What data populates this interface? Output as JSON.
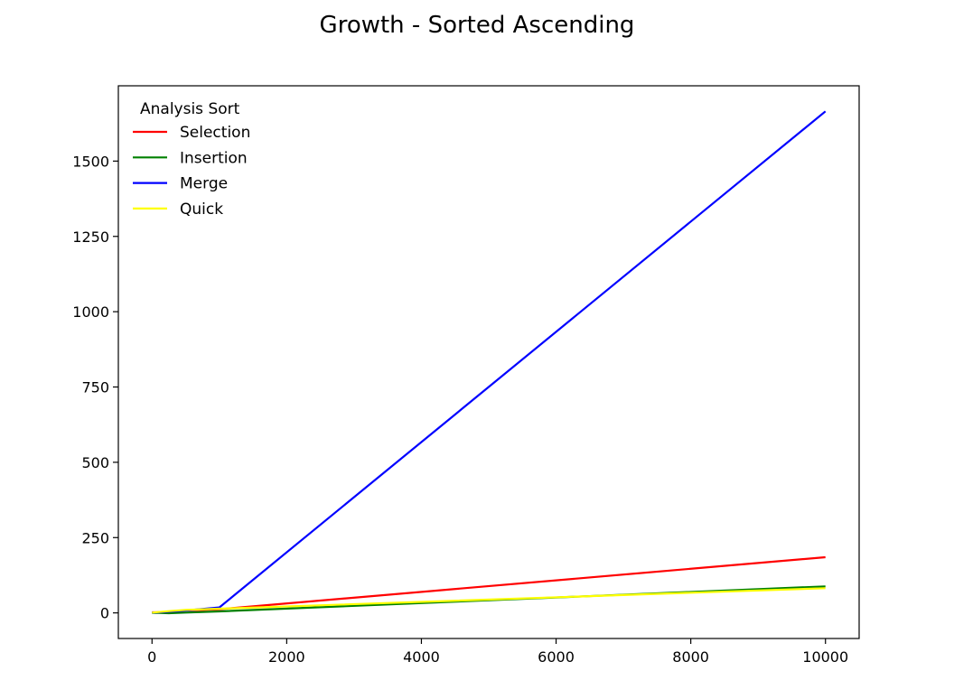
{
  "chart_data": {
    "type": "line",
    "title": "Growth - Sorted Ascending",
    "xlabel": "",
    "ylabel": "",
    "xlim": [
      -500,
      10500
    ],
    "ylim": [
      -85,
      1750
    ],
    "xticks": [
      0,
      2000,
      4000,
      6000,
      8000,
      10000
    ],
    "xtick_labels": [
      "0",
      "2000",
      "4000",
      "6000",
      "8000",
      "10000"
    ],
    "yticks": [
      0,
      250,
      500,
      750,
      1000,
      1250,
      1500
    ],
    "ytick_labels": [
      "0",
      "250",
      "500",
      "750",
      "1000",
      "1250",
      "1500"
    ],
    "grid": false,
    "legend": {
      "title": "Analysis Sort",
      "placement": "top-left"
    },
    "series": [
      {
        "name": "Selection",
        "color": "#ff0000",
        "x": [
          0,
          100,
          250,
          500,
          1000,
          10000
        ],
        "y": [
          2,
          2,
          4,
          8,
          12,
          185
        ]
      },
      {
        "name": "Insertion",
        "color": "#008000",
        "x": [
          0,
          100,
          250,
          500,
          1000,
          10000
        ],
        "y": [
          0,
          0,
          -1,
          1,
          5,
          88
        ]
      },
      {
        "name": "Merge",
        "color": "#0000ff",
        "x": [
          0,
          100,
          250,
          500,
          1000,
          10000
        ],
        "y": [
          1,
          2,
          4,
          8,
          18,
          1665
        ]
      },
      {
        "name": "Quick",
        "color": "#ffff00",
        "x": [
          0,
          100,
          250,
          500,
          1000,
          10000
        ],
        "y": [
          1,
          3,
          6,
          10,
          14,
          82
        ]
      }
    ]
  }
}
